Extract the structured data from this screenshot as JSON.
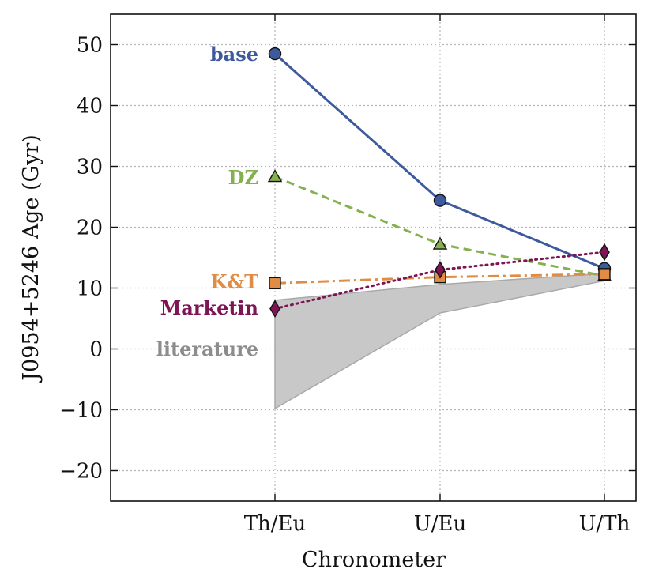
{
  "chart_data": {
    "type": "line",
    "title": "",
    "xlabel": "Chronometer",
    "ylabel": "J0954+5246 Age (Gyr)",
    "categories": [
      "Th/Eu",
      "U/Eu",
      "U/Th"
    ],
    "ylim": [
      -25,
      55
    ],
    "yticks": [
      -20,
      -10,
      0,
      10,
      20,
      30,
      40,
      50
    ],
    "ytick_labels": [
      "−20",
      "−10",
      "0",
      "10",
      "20",
      "30",
      "40",
      "50"
    ],
    "grid": true,
    "series": [
      {
        "name": "base",
        "label": "base",
        "color": "#3d5a9c",
        "marker": "circle",
        "linestyle": "solid",
        "values": [
          48.5,
          24.4,
          13.2
        ]
      },
      {
        "name": "DZ",
        "label": "DZ",
        "color": "#84b04f",
        "marker": "triangle",
        "linestyle": "dashed",
        "values": [
          28.3,
          17.2,
          12.0
        ]
      },
      {
        "name": "K&T",
        "label": "K&T",
        "color": "#e08c45",
        "marker": "square",
        "linestyle": "dashdot",
        "values": [
          10.8,
          11.8,
          12.3
        ]
      },
      {
        "name": "Marketin",
        "label": "Marketin",
        "color": "#7d1454",
        "marker": "diamond",
        "linestyle": "dotted",
        "values": [
          6.6,
          13.0,
          15.9
        ]
      }
    ],
    "band": {
      "name": "literature",
      "label": "literature",
      "color": "#c8c8c8",
      "text_color": "#8c8c8c",
      "upper": [
        8.0,
        10.6,
        12.4
      ],
      "lower": [
        -9.8,
        5.9,
        11.2
      ]
    }
  }
}
